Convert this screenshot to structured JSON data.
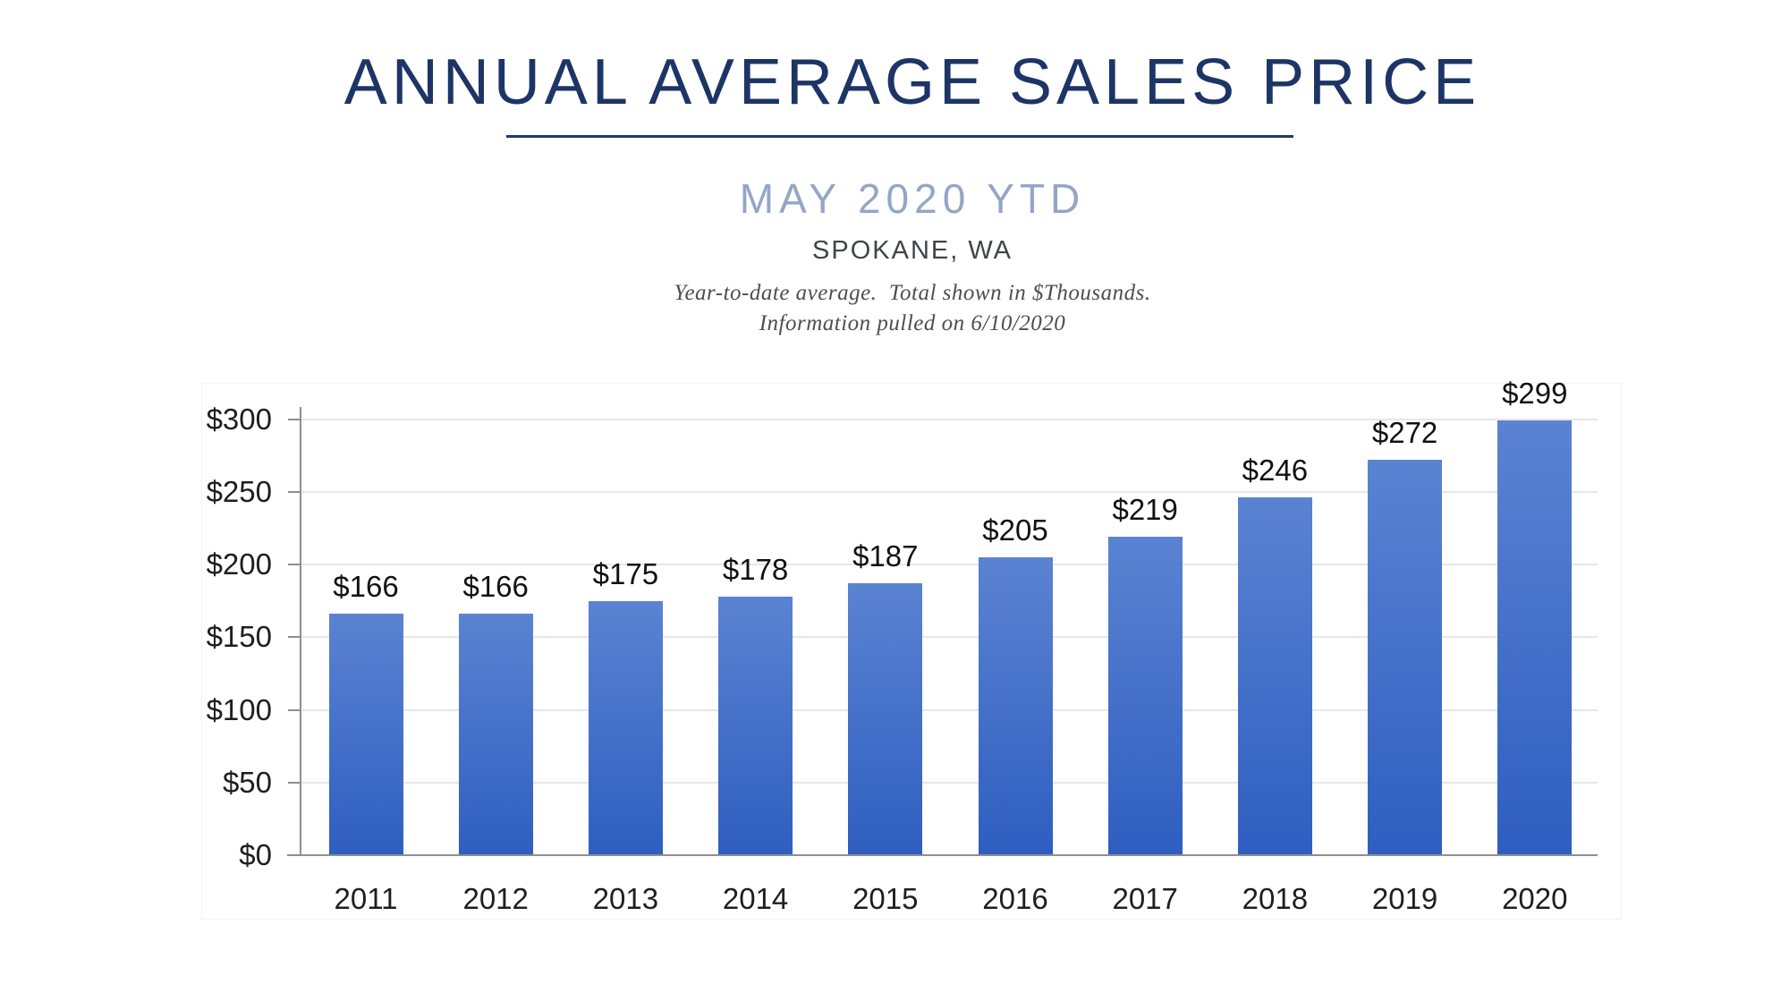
{
  "header": {
    "title": "ANNUAL AVERAGE SALES PRICE",
    "subtitle": "MAY 2020 YTD",
    "location": "SPOKANE, WA",
    "note_line1": "Year-to-date average.  Total shown in $Thousands.",
    "note_line2": "Information pulled on 6/10/2020"
  },
  "chart_data": {
    "type": "bar",
    "title": "ANNUAL AVERAGE SALES PRICE",
    "subtitle": "MAY 2020 YTD",
    "location": "SPOKANE, WA",
    "units": "$Thousands",
    "categories": [
      "2011",
      "2012",
      "2013",
      "2014",
      "2015",
      "2016",
      "2017",
      "2018",
      "2019",
      "2020"
    ],
    "values": [
      166,
      166,
      175,
      178,
      187,
      205,
      219,
      246,
      272,
      299
    ],
    "data_labels": [
      "$166",
      "$166",
      "$175",
      "$178",
      "$187",
      "$205",
      "$219",
      "$246",
      "$272",
      "$299"
    ],
    "y_ticks": [
      0,
      50,
      100,
      150,
      200,
      250,
      300
    ],
    "y_tick_labels": [
      "$0",
      "$50",
      "$100",
      "$150",
      "$200",
      "$250",
      "$300"
    ],
    "ylim": [
      0,
      300
    ],
    "xlabel": "",
    "ylabel": "",
    "grid": "horizontal",
    "legend": "none",
    "bar_gradient_top": "#5b83d2",
    "bar_gradient_bottom": "#2e5ec0"
  },
  "colors": {
    "title": "#1d3566",
    "underline": "#1f3a6e",
    "subtitle": "#93a6c6",
    "location": "#3f4448",
    "note": "#4e4e4e",
    "axis": "#8f8f8f",
    "gridline": "#e7e7e7",
    "tick_label": "#1e1e1e",
    "data_label": "#111111"
  }
}
